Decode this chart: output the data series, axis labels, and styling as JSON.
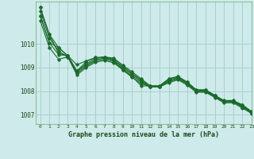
{
  "title": "Graphe pression niveau de la mer (hPa)",
  "background_color": "#ceeaea",
  "grid_color": "#a8d0d0",
  "line_color": "#1a6b2a",
  "xlim": [
    -0.5,
    23
  ],
  "ylim": [
    1006.6,
    1011.8
  ],
  "yticks": [
    1007,
    1008,
    1009,
    1010
  ],
  "xticks": [
    0,
    1,
    2,
    3,
    4,
    5,
    6,
    7,
    8,
    9,
    10,
    11,
    12,
    13,
    14,
    15,
    16,
    17,
    18,
    19,
    20,
    21,
    22,
    23
  ],
  "series": [
    [
      1011.55,
      1010.4,
      1009.85,
      1009.5,
      1008.85,
      1009.15,
      1009.38,
      1009.45,
      1009.35,
      1009.05,
      1008.75,
      1008.48,
      1008.18,
      1008.18,
      1008.48,
      1008.58,
      1008.35,
      1008.02,
      1008.02,
      1007.8,
      1007.58,
      1007.58,
      1007.4,
      1007.12
    ],
    [
      1011.4,
      1010.25,
      1009.7,
      1009.45,
      1008.82,
      1009.1,
      1009.32,
      1009.4,
      1009.3,
      1009.0,
      1008.72,
      1008.42,
      1008.18,
      1008.18,
      1008.42,
      1008.55,
      1008.32,
      1008.0,
      1008.0,
      1007.78,
      1007.56,
      1007.56,
      1007.35,
      1007.1
    ],
    [
      1011.2,
      1010.05,
      1009.55,
      1009.5,
      1008.75,
      1009.05,
      1009.28,
      1009.35,
      1009.25,
      1008.95,
      1008.65,
      1008.38,
      1008.18,
      1008.18,
      1008.4,
      1008.52,
      1008.3,
      1007.98,
      1007.98,
      1007.76,
      1007.54,
      1007.54,
      1007.32,
      1007.08
    ],
    [
      1011.0,
      1009.85,
      1009.35,
      1009.45,
      1008.68,
      1009.0,
      1009.22,
      1009.3,
      1009.2,
      1008.9,
      1008.58,
      1008.32,
      1008.18,
      1008.18,
      1008.35,
      1008.48,
      1008.25,
      1007.95,
      1007.95,
      1007.73,
      1007.5,
      1007.5,
      1007.28,
      1007.05
    ]
  ],
  "series2": [
    [
      1011.55,
      1010.4,
      1009.6,
      1009.5,
      1008.85,
      1009.25,
      1009.42,
      1009.45,
      1009.4,
      1009.1,
      1008.82,
      1008.52,
      1008.22,
      1008.22,
      1008.52,
      1008.62,
      1008.38,
      1008.05,
      1008.05,
      1007.82,
      1007.6,
      1007.6,
      1007.42,
      1007.14
    ],
    [
      1011.2,
      1010.05,
      1009.85,
      1009.5,
      1009.12,
      1009.28,
      1009.42,
      1009.42,
      1009.32,
      1008.88,
      1008.62,
      1008.22,
      1008.22,
      1008.22,
      1008.52,
      1008.62,
      1008.38,
      1008.05,
      1008.05,
      1007.82,
      1007.58,
      1007.58,
      1007.38,
      1007.12
    ]
  ]
}
